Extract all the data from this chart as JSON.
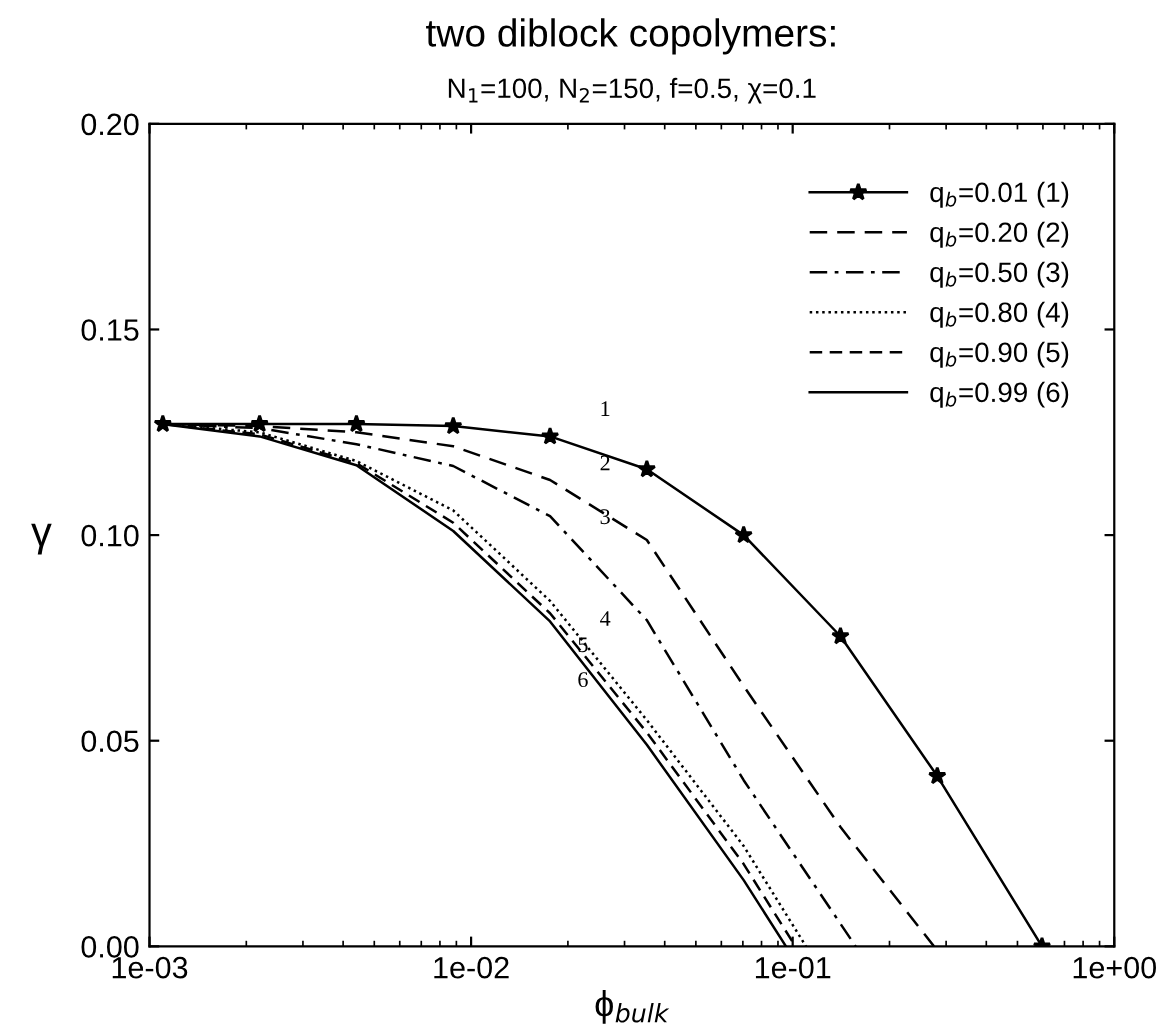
{
  "chart_data": {
    "type": "line",
    "title": "two diblock copolymers:",
    "subtitle": "N$_{1}$=100, N$_{2}$=150, f=0.5, χ=0.1",
    "xlabel": "ϕ$_{bulk}$",
    "ylabel": "γ",
    "log": "x",
    "xlim": [
      0.001,
      1
    ],
    "xticks": [
      {
        "value": 0.001,
        "label": "1e-03"
      },
      {
        "value": 0.01,
        "label": "1e-02"
      },
      {
        "value": 0.1,
        "label": "1e-01"
      },
      {
        "value": 1,
        "label": "1e+00"
      }
    ],
    "ylim": [
      0,
      0.2
    ],
    "yticks": [
      {
        "value": 0,
        "label": "0.00"
      },
      {
        "value": 0.05,
        "label": "0.05"
      },
      {
        "value": 0.1,
        "label": "0.10"
      },
      {
        "value": 0.15,
        "label": "0.15"
      },
      {
        "value": 0.2,
        "label": "0.20"
      }
    ],
    "grid": false,
    "legend": "top right",
    "series": [
      {
        "name": "q$_{b}$=0.01 (1)",
        "color": "#000000",
        "marker": "star",
        "line_style": "solid",
        "x": [
          0.0011,
          0.0022,
          0.0044,
          0.0088,
          0.0176,
          0.0352,
          0.0704,
          0.1408,
          0.2816,
          0.596
        ],
        "values": [
          0.127,
          0.127,
          0.127,
          0.1265,
          0.124,
          0.116,
          0.1,
          0.0754,
          0.0414,
          0
        ]
      },
      {
        "name": "q$_{b}$=0.20 (2)",
        "color": "#000000",
        "line_style": "dashed",
        "x": [
          0.0011,
          0.0022,
          0.0044,
          0.0088,
          0.0176,
          0.0352,
          0.0704,
          0.1408,
          0.275
        ],
        "values": [
          0.127,
          0.1265,
          0.125,
          0.1216,
          0.1134,
          0.0988,
          0.0633,
          0.029,
          0
        ]
      },
      {
        "name": "q$_{b}$=0.50 (3)",
        "color": "#000000",
        "line_style": "dashdot",
        "x": [
          0.0011,
          0.0022,
          0.0044,
          0.0088,
          0.0176,
          0.0352,
          0.0704,
          0.157
        ],
        "values": [
          0.127,
          0.126,
          0.1221,
          0.1168,
          0.1046,
          0.0793,
          0.0404,
          0
        ]
      },
      {
        "name": "q$_{b}$=0.80 (4)",
        "color": "#000000",
        "line_style": "dotted",
        "x": [
          0.0011,
          0.0022,
          0.0044,
          0.0088,
          0.0176,
          0.0352,
          0.0704,
          0.11
        ],
        "values": [
          0.127,
          0.125,
          0.118,
          0.106,
          0.084,
          0.055,
          0.0244,
          0
        ]
      },
      {
        "name": "q$_{b}$=0.90 (5)",
        "color": "#000000",
        "line_style": "dashed",
        "x": [
          0.0011,
          0.0022,
          0.0044,
          0.0088,
          0.0176,
          0.0352,
          0.0704,
          0.102
        ],
        "values": [
          0.127,
          0.1245,
          0.1175,
          0.103,
          0.081,
          0.052,
          0.02,
          0
        ]
      },
      {
        "name": "q$_{b}$=0.99 (6)",
        "color": "#000000",
        "line_style": "solid",
        "x": [
          0.0011,
          0.0022,
          0.0044,
          0.0088,
          0.0176,
          0.0352,
          0.0704,
          0.0953
        ],
        "values": [
          0.127,
          0.124,
          0.117,
          0.101,
          0.079,
          0.049,
          0.0161,
          0
        ]
      }
    ],
    "annotations": [
      "1",
      "2",
      "3",
      "4",
      "5",
      "6"
    ]
  }
}
